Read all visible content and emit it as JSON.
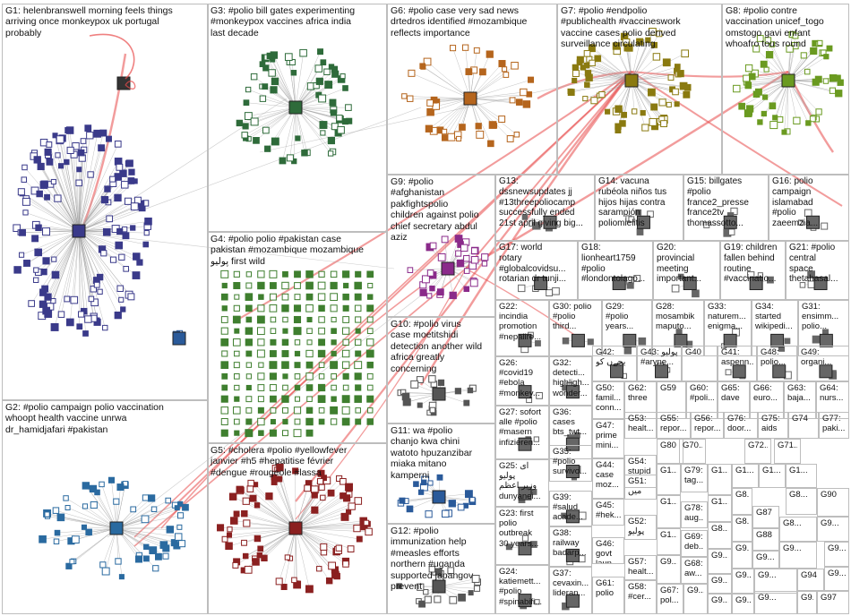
{
  "groups": [
    {
      "id": "G1",
      "label": "G1: helenbranswell morning feels things\narriving once monkeypox uk portugal\nprobably",
      "color": "#3a3a8a"
    },
    {
      "id": "G2",
      "label": "G2: #polio campaign polio vaccination\nwhoopt health vaccine unrwa\ndr_hamidjafari #pakistan",
      "color": "#2a6aa0"
    },
    {
      "id": "G3",
      "label": "G3: #polio bill gates experimenting\n#monkeypox vaccines africa india\nlast decade",
      "color": "#2e6b3a"
    },
    {
      "id": "G4",
      "label": "G4: #polio polio #pakistan case\npakistan #mozambique mozambique\nپولیو first wild",
      "color": "#3f7f2f"
    },
    {
      "id": "G5",
      "label": "G5: #cholera #polio #yellowfever\njanvier #h5 #hepatitise février\n#dengue #rougeole #lassa",
      "color": "#8b2020"
    },
    {
      "id": "G6",
      "label": "G6: #polio case very sad news\ndrtedros identified #mozambique\nreflects importance",
      "color": "#b5651d"
    },
    {
      "id": "G7",
      "label": "G7: #polio #endpolio\n#publichealth #vaccineswork\nvaccine cases polio derived\nsurveillance circulating",
      "color": "#8a7a10"
    },
    {
      "id": "G8",
      "label": "G8: #polio contre\nvaccination unicef_togo\nomstogo gavi enfant\nwhoafro tous round",
      "color": "#6a9a20"
    },
    {
      "id": "G9",
      "label": "G9: #polio\n#afghanistan\npakfightspolio\nchildren against polio\nchief secretary abdul\naziz",
      "color": "#8a2a8a"
    },
    {
      "id": "G10",
      "label": "G10: #polio virus\ncase moetitshidi\ndetection another wild\nafrica greatly\nconcerning",
      "color": "#555555"
    },
    {
      "id": "G11",
      "label": "G11: wa #polio\nchanjo kwa chini\nwatoto hpuzanzibar\nmiaka mitano\nkamperni",
      "color": "#2a5a9a"
    },
    {
      "id": "G12",
      "label": "G12: #polio\nimmunization help\n#measles efforts\nnorthern #uganda\nsupported japangov\nprevent",
      "color": "#555555"
    },
    {
      "id": "G13",
      "label": "G13:\ndssnewsupdates jj\n#13threepoliocamp\nsuccessfully ended\n21st april giving big...",
      "color": "#555555"
    },
    {
      "id": "G14",
      "label": "G14: vacuna\nrubéola niños tus\nhijos hijas contra\nsarampión\npoliomielitis",
      "color": "#555555"
    },
    {
      "id": "G15",
      "label": "G15: billgates\n#polio\nfrance2_presse\nfrance2tv\nthomassotto...",
      "color": "#555555"
    },
    {
      "id": "G16",
      "label": "G16: polio\ncampaign\nislamabad\n#polio\nzaeemzia...",
      "color": "#555555"
    },
    {
      "id": "G17",
      "label": "G17: world\nrotary\n#globalcovidsu...\nrotarian dr tunji...",
      "color": "#555555"
    },
    {
      "id": "G18",
      "label": "G18:\nlionheart1759\n#polio\n#londontolago...",
      "color": "#555555"
    },
    {
      "id": "G20",
      "label": "G20:\nprovincial\nmeeting\nimportant...",
      "color": "#555555"
    },
    {
      "id": "G19",
      "label": "G19: children\nfallen behind\nroutine\n#vaccinatio...",
      "color": "#555555"
    },
    {
      "id": "G21",
      "label": "G21: #polio\ncentral\nspace\nthetahasal...",
      "color": "#555555"
    },
    {
      "id": "G22",
      "label": "G22:\nincindia\npromotion\n#nepalire...",
      "color": "#555555"
    },
    {
      "id": "G30",
      "label": "G30: polio\n#polio\nthird...",
      "color": "#555555"
    },
    {
      "id": "G29",
      "label": "G29:\n#polio\nyears...",
      "color": "#555555"
    },
    {
      "id": "G28",
      "label": "G28:\nmosambik\nmaputo...",
      "color": "#555555"
    },
    {
      "id": "G33",
      "label": "G33:\nnaturem...\nenigma...",
      "color": "#555555"
    },
    {
      "id": "G34",
      "label": "G34:\nstarted\nwikipedi...",
      "color": "#555555"
    },
    {
      "id": "G31",
      "label": "G31:\nensimm...\npolio...",
      "color": "#555555"
    },
    {
      "id": "G26",
      "label": "G26:\n#covid19\n#ebola\n#monkey...",
      "color": "#555555"
    },
    {
      "id": "G32",
      "label": "G32:\ndetecti...\nhighligh...\nwonder...",
      "color": "#555555"
    },
    {
      "id": "G42",
      "label": "G42:\nیجےں کو",
      "color": "#555555"
    },
    {
      "id": "G43",
      "label": "G43: پولیو\n#aryne...",
      "color": "#555555"
    },
    {
      "id": "G40",
      "label": "G40",
      "color": "#555555"
    },
    {
      "id": "G41",
      "label": "G41:\naspenn...",
      "color": "#555555"
    },
    {
      "id": "G48",
      "label": "G48:\npolio...",
      "color": "#555555"
    },
    {
      "id": "G49",
      "label": "G49:\norgani...",
      "color": "#555555"
    },
    {
      "id": "G27",
      "label": "G27: sofort\nalle #polio\n#masern\ninfizieren...",
      "color": "#555555"
    },
    {
      "id": "G36",
      "label": "G36:\ncases\nbts_twt...",
      "color": "#555555"
    },
    {
      "id": "G50",
      "label": "G50:\nfamil...\nconn...",
      "color": "#555555"
    },
    {
      "id": "G62",
      "label": "G62:\nthree",
      "color": "#555555"
    },
    {
      "id": "G59",
      "label": "G59",
      "color": "#555555"
    },
    {
      "id": "G60",
      "label": "G60:\n#poli...",
      "color": "#555555"
    },
    {
      "id": "G65",
      "label": "G65:\ndave",
      "color": "#555555"
    },
    {
      "id": "G66",
      "label": "G66:\neuro...",
      "color": "#555555"
    },
    {
      "id": "G63",
      "label": "G63:\nbaja...",
      "color": "#555555"
    },
    {
      "id": "G64",
      "label": "G64:\nnurs...",
      "color": "#555555"
    },
    {
      "id": "G35",
      "label": "G35:\n#polio\nsurvivo...",
      "color": "#555555"
    },
    {
      "id": "G47",
      "label": "G47:\nprime\nmini...",
      "color": "#555555"
    },
    {
      "id": "G53",
      "label": "G53:\nhealt...",
      "color": "#555555"
    },
    {
      "id": "G55",
      "label": "G55:\nrepor...",
      "color": "#555555"
    },
    {
      "id": "G56",
      "label": "G56:\nrepor...",
      "color": "#555555"
    },
    {
      "id": "G76",
      "label": "G76:\ndoor...",
      "color": "#555555"
    },
    {
      "id": "G75",
      "label": "G75:\naids",
      "color": "#555555"
    },
    {
      "id": "G74",
      "label": "G74",
      "color": "#555555"
    },
    {
      "id": "G77",
      "label": "G77:\npaki...",
      "color": "#555555"
    },
    {
      "id": "G25",
      "label": "G25: ای\nپولیو\nوزیر اعظم\ndunyanei...",
      "color": "#555555"
    },
    {
      "id": "G44",
      "label": "G44:\ncase\nmoz...",
      "color": "#555555"
    },
    {
      "id": "G54",
      "label": "G54:\nstupid",
      "color": "#555555"
    },
    {
      "id": "G80",
      "label": "G80",
      "color": "#555555"
    },
    {
      "id": "G70",
      "label": "G70...",
      "color": "#555555"
    },
    {
      "id": "G72",
      "label": "G72...",
      "color": "#555555"
    },
    {
      "id": "G71",
      "label": "G71...",
      "color": "#555555"
    },
    {
      "id": "G39",
      "label": "G39:\n#salud\nacade...",
      "color": "#555555"
    },
    {
      "id": "G51",
      "label": "G51:\nمیں",
      "color": "#555555"
    },
    {
      "id": "G79",
      "label": "G79:\ntag...",
      "color": "#555555"
    },
    {
      "id": "G45",
      "label": "G45:\n#hek...",
      "color": "#555555"
    },
    {
      "id": "G78",
      "label": "G78:\naug...",
      "color": "#555555"
    },
    {
      "id": "G23",
      "label": "G23: first\npolio\noutbreak\n30 years...",
      "color": "#555555"
    },
    {
      "id": "G38",
      "label": "G38:\nrailway\nbadarp...",
      "color": "#555555"
    },
    {
      "id": "G52",
      "label": "G52:\nپولیو",
      "color": "#555555"
    },
    {
      "id": "G46",
      "label": "G46:\ngovt\nlaun...",
      "color": "#555555"
    },
    {
      "id": "G57",
      "label": "G57:\nhealt...",
      "color": "#555555"
    },
    {
      "id": "G69",
      "label": "G69:\ndeb...",
      "color": "#555555"
    },
    {
      "id": "G68",
      "label": "G68:\naw...",
      "color": "#555555"
    },
    {
      "id": "G24",
      "label": "G24:\nkatiemett...\n#polio\n#spinabifi...",
      "color": "#555555"
    },
    {
      "id": "G37",
      "label": "G37:\ncevaxin...\nlideran...",
      "color": "#555555"
    },
    {
      "id": "G61",
      "label": "G61:\npolio",
      "color": "#555555"
    },
    {
      "id": "G58",
      "label": "G58:\n#cer...",
      "color": "#555555"
    },
    {
      "id": "G67",
      "label": "G67:\npol...",
      "color": "#555555"
    },
    {
      "id": "G87",
      "label": "G87",
      "color": "#555555"
    },
    {
      "id": "G88",
      "label": "G88",
      "color": "#555555"
    },
    {
      "id": "G90",
      "label": "G90",
      "color": "#555555"
    },
    {
      "id": "G94",
      "label": "G94",
      "color": "#555555"
    },
    {
      "id": "G97",
      "label": "G97",
      "color": "#555555"
    },
    {
      "id": "G1x",
      "label": "G1...",
      "color": "#555555"
    },
    {
      "id": "G8x",
      "label": "G8...",
      "color": "#555555"
    },
    {
      "id": "G9x",
      "label": "G9...",
      "color": "#555555"
    }
  ],
  "colors": {
    "edge_cross": "#e84a4a",
    "edge_inner": "#9a9a9a",
    "cell_border": "#bdbdbd"
  }
}
